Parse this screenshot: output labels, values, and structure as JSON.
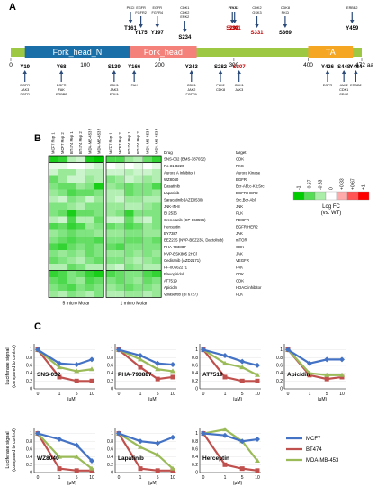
{
  "panels": {
    "a": "A",
    "b": "B",
    "c": "C"
  },
  "domain_map": {
    "domains": [
      {
        "name": "Fork_head_N",
        "start": 19,
        "end": 160,
        "color": "#1a6fa8"
      },
      {
        "name": "Fork_head",
        "start": 160,
        "end": 250,
        "color": "#f4827a"
      },
      {
        "name": "TA",
        "start": 400,
        "end": 460,
        "color": "#f5a623"
      }
    ],
    "backbone_color": "#9cc843",
    "tick_values": [
      "0",
      "100",
      "200",
      "300",
      "400",
      "472 aa"
    ],
    "top_sites": [
      {
        "site": "T161",
        "aa": 161,
        "kinases": [
          "PKCI"
        ],
        "color": "#000000"
      },
      {
        "site": "Y175",
        "aa": 175,
        "kinases": [
          "EGFR",
          "FGFR2"
        ],
        "color": "#000000"
      },
      {
        "site": "Y197",
        "aa": 197,
        "kinases": [
          "EGFR",
          "FGFR4"
        ],
        "color": "#000000"
      },
      {
        "site": "S234",
        "aa": 234,
        "kinases": [
          "CDK1",
          "CDK2",
          "ERK2"
        ],
        "color": "#000000"
      },
      {
        "site": "S298",
        "aa": 298,
        "kinases": [
          "PLK3"
        ],
        "color": "#c00000"
      },
      {
        "site": "S301",
        "aa": 301,
        "kinases": [
          "PLK2"
        ],
        "color": "#c00000"
      },
      {
        "site": "S331",
        "aa": 331,
        "kinases": [
          "CDK2",
          "GSK3"
        ],
        "color": "#c00000"
      },
      {
        "site": "S369",
        "aa": 369,
        "kinases": [
          "CDK8",
          "PKCi"
        ],
        "color": "#000000"
      },
      {
        "site": "Y459",
        "aa": 459,
        "kinases": [
          "ERBB2"
        ],
        "color": "#000000"
      }
    ],
    "bottom_sites": [
      {
        "site": "Y19",
        "aa": 19,
        "kinases": [
          "EGFR",
          "JAK3",
          "FGFR"
        ],
        "color": "#000000"
      },
      {
        "site": "Y68",
        "aa": 68,
        "kinases": [
          "EGFR",
          "FAK",
          "ERBB2"
        ],
        "color": "#000000"
      },
      {
        "site": "S139",
        "aa": 139,
        "kinases": [
          "CDK1",
          "JAK3",
          "ERK1"
        ],
        "color": "#000000"
      },
      {
        "site": "Y166",
        "aa": 166,
        "kinases": [
          "FAK"
        ],
        "color": "#000000"
      },
      {
        "site": "Y243",
        "aa": 243,
        "kinases": [
          "CDK1",
          "JAK2",
          "FGFR1"
        ],
        "color": "#000000"
      },
      {
        "site": "S282",
        "aa": 282,
        "kinases": [
          "PLK2",
          "CDK8"
        ],
        "color": "#000000"
      },
      {
        "site": "S307",
        "aa": 307,
        "kinases": [
          "CDK1",
          "JAK3"
        ],
        "color": "#c00000"
      },
      {
        "site": "Y426",
        "aa": 426,
        "kinases": [
          "EGFR"
        ],
        "color": "#000000"
      },
      {
        "site": "S448",
        "aa": 448,
        "kinases": [
          "JAK2",
          "CDK1",
          "CDK2"
        ],
        "color": "#000000"
      },
      {
        "site": "Y464",
        "aa": 464,
        "kinases": [
          "ERBB2"
        ],
        "color": "#000000"
      }
    ]
  },
  "heatmap": {
    "col_headers": [
      "MCF7 Rep 1",
      "MCF7 Rep 2",
      "BT474 Rep 1",
      "BT474 Rep 2",
      "MDA-MB-453 Rep 1",
      "MDA-MB-453 Rep 2"
    ],
    "header_drug": "Drug",
    "header_target": "target",
    "group_labels": [
      "5 micro Molar",
      "1 micro Molar"
    ],
    "drugs": [
      {
        "drug": "SNS-032 (BMS-387032)",
        "target": "CDK"
      },
      {
        "drug": "Ro 31-8220",
        "target": "PKC"
      },
      {
        "drug": "Aurora A Inhibitor I",
        "target": "Aurora Kinase"
      },
      {
        "drug": "WZ8040",
        "target": "EGFR"
      },
      {
        "drug": "Dasatinib",
        "target": "Bcr-Abl;c-Kit;Src"
      },
      {
        "drug": "Lapatinib",
        "target": "EGFR,HER2"
      },
      {
        "drug": "Saracatinib (AZD0530)",
        "target": "Src,Bcr-Abl"
      },
      {
        "drug": "JNK-IN-8",
        "target": "JNK"
      },
      {
        "drug": "BI 2536",
        "target": "PLK"
      },
      {
        "drug": "Crenolanib (CP-868596)",
        "target": "PDGFR"
      },
      {
        "drug": "Herceptin",
        "target": "EGFR,HER2"
      },
      {
        "drug": "EY7387",
        "target": "JAK"
      },
      {
        "drug": "BEZ235 (NVP-BEZ235, Dactolisib)",
        "target": "mTOR"
      },
      {
        "drug": "PHA-793887",
        "target": "CDK"
      },
      {
        "drug": "NVP-BSK805 2HCl",
        "target": "JAK"
      },
      {
        "drug": "Cediranib (AZD2171)",
        "target": "VEGFR"
      },
      {
        "drug": "PF-00562271",
        "target": "FAK"
      },
      {
        "drug": "Flavopiridol",
        "target": "CDK"
      },
      {
        "drug": "AT7519",
        "target": "CDK"
      },
      {
        "drug": "Apicidin",
        "target": "HDAC inhibitor"
      },
      {
        "drug": "Volasertib (BI 6727)",
        "target": "PLK"
      }
    ],
    "values_5uM": [
      [
        -0.9,
        -0.8,
        -0.3,
        -0.2,
        -0.9,
        -1.0
      ],
      [
        -0.1,
        -0.1,
        0.0,
        0.0,
        -0.1,
        -0.2
      ],
      [
        -0.2,
        -0.4,
        -0.4,
        -0.2,
        -0.3,
        -0.3
      ],
      [
        -0.6,
        -0.4,
        -0.2,
        -0.2,
        -0.4,
        -0.3
      ],
      [
        -0.5,
        -0.6,
        -0.6,
        -0.4,
        -0.5,
        -0.9
      ],
      [
        -0.4,
        -0.5,
        -0.7,
        -0.6,
        -0.6,
        -0.5
      ],
      [
        -0.3,
        -0.2,
        -0.5,
        -0.4,
        -0.2,
        -0.4
      ],
      [
        -0.5,
        -0.5,
        -0.4,
        -0.3,
        -0.5,
        -0.5
      ],
      [
        -0.5,
        -0.6,
        -0.9,
        -0.6,
        -0.6,
        -0.5
      ],
      [
        -0.3,
        -0.2,
        -0.7,
        -0.3,
        -0.3,
        -0.6
      ],
      [
        -0.7,
        -0.6,
        -0.8,
        -0.7,
        -0.4,
        -0.5
      ],
      [
        -0.4,
        -0.5,
        -0.6,
        -0.5,
        -0.5,
        -0.4
      ],
      [
        -0.5,
        -0.6,
        -0.7,
        -0.6,
        -0.6,
        -0.7
      ],
      [
        -0.7,
        -0.8,
        -0.6,
        -0.5,
        -0.6,
        -0.5
      ],
      [
        -0.5,
        -0.4,
        -0.5,
        -0.4,
        -0.6,
        -0.5
      ],
      [
        -0.6,
        -0.5,
        -0.4,
        -0.3,
        -0.5,
        -0.6
      ],
      [
        -0.3,
        -0.3,
        -0.6,
        -0.5,
        -0.3,
        -0.3
      ],
      [
        -0.8,
        -0.7,
        -0.5,
        -0.6,
        -0.8,
        -0.9
      ],
      [
        -0.6,
        -0.7,
        -0.5,
        -0.4,
        -0.7,
        -0.6
      ],
      [
        -0.5,
        -0.6,
        -0.7,
        -0.5,
        -0.6,
        -0.5
      ],
      [
        -0.4,
        -0.3,
        -0.5,
        -0.4,
        -0.3,
        -0.5
      ]
    ],
    "values_1uM": [
      [
        -0.7,
        -0.7,
        -0.4,
        -0.3,
        -0.6,
        -0.8
      ],
      [
        0.0,
        -0.1,
        0.0,
        -0.1,
        0.0,
        -0.1
      ],
      [
        -0.2,
        -0.2,
        -0.3,
        -0.2,
        -0.2,
        -0.3
      ],
      [
        -0.5,
        -0.4,
        -0.2,
        -0.3,
        -0.4,
        -0.3
      ],
      [
        -0.4,
        -0.5,
        -0.6,
        -0.5,
        -0.5,
        -0.7
      ],
      [
        -0.3,
        -0.3,
        -0.6,
        -0.5,
        -0.5,
        -0.4
      ],
      [
        -0.3,
        -0.2,
        -0.4,
        -0.4,
        -0.3,
        -0.3
      ],
      [
        -0.4,
        -0.4,
        -0.3,
        -0.3,
        -0.4,
        -0.5
      ],
      [
        -0.4,
        -0.5,
        -0.8,
        -0.5,
        -0.5,
        -0.5
      ],
      [
        -0.2,
        -0.2,
        -0.6,
        -0.3,
        -0.2,
        -0.5
      ],
      [
        -0.6,
        -0.5,
        -0.7,
        -0.6,
        -0.4,
        -0.5
      ],
      [
        -0.4,
        -0.4,
        -0.5,
        -0.5,
        -0.4,
        -0.4
      ],
      [
        -0.5,
        -0.5,
        -0.6,
        -0.6,
        -0.5,
        -0.6
      ],
      [
        -0.6,
        -0.7,
        -0.5,
        -0.5,
        -0.5,
        -0.5
      ],
      [
        -0.4,
        -0.4,
        -0.5,
        -0.4,
        -0.5,
        -0.4
      ],
      [
        -0.5,
        -0.5,
        -0.4,
        -0.3,
        -0.4,
        -0.5
      ],
      [
        -0.3,
        -0.2,
        -0.5,
        -0.4,
        -0.3,
        -0.3
      ],
      [
        -0.7,
        -0.6,
        -0.5,
        -0.5,
        -0.7,
        -0.8
      ],
      [
        -0.5,
        -0.6,
        -0.5,
        -0.4,
        -0.6,
        -0.5
      ],
      [
        -0.4,
        -0.5,
        -0.6,
        -0.5,
        -0.5,
        -0.4
      ],
      [
        -0.3,
        -0.3,
        -0.4,
        -0.4,
        -0.3,
        -0.4
      ]
    ],
    "legend": {
      "ticks": [
        "-1",
        "-0.67",
        "-0.33",
        "0",
        "+0.33",
        "+0.67",
        "+1"
      ],
      "title_line1": "Log FC",
      "title_line2": "(vs. WT)"
    }
  },
  "dose_response": {
    "ylabel": "Luciferase signal\n(compared to control)",
    "xlabel": "(μM)",
    "x_ticks": [
      "0",
      "1",
      "5",
      "10"
    ],
    "y_ticks": [
      "0",
      "0.2",
      "0.4",
      "0.6",
      "0.8",
      "1"
    ],
    "series_colors": {
      "MCF7": "#4472c4",
      "BT474": "#c0504d",
      "MDA-MB-453": "#9bbb59"
    },
    "legend": [
      "MCF7",
      "BT474",
      "MDA-MB-453"
    ],
    "panels": [
      {
        "name": "SNS-032",
        "MCF7": [
          1.0,
          0.65,
          0.62,
          0.75
        ],
        "BT474": [
          1.0,
          0.3,
          0.2,
          0.2
        ],
        "MDA-MB-453": [
          1.0,
          0.55,
          0.45,
          0.5
        ]
      },
      {
        "name": "PHA-793887",
        "MCF7": [
          1.0,
          0.85,
          0.65,
          0.62
        ],
        "BT474": [
          1.0,
          0.55,
          0.25,
          0.3
        ],
        "MDA-MB-453": [
          1.0,
          0.75,
          0.5,
          0.45
        ]
      },
      {
        "name": "AT7519",
        "MCF7": [
          1.0,
          0.85,
          0.7,
          0.6
        ],
        "BT474": [
          1.0,
          0.3,
          0.2,
          0.2
        ],
        "MDA-MB-453": [
          1.0,
          0.65,
          0.55,
          0.35
        ]
      },
      {
        "name": "Apicidin",
        "MCF7": [
          1.0,
          0.65,
          0.75,
          0.75
        ],
        "BT474": [
          1.0,
          0.35,
          0.25,
          0.3
        ],
        "MDA-MB-453": [
          1.0,
          0.4,
          0.35,
          0.35
        ]
      },
      {
        "name": "WZ8040",
        "MCF7": [
          1.0,
          0.85,
          0.7,
          0.3
        ],
        "BT474": [
          1.0,
          0.1,
          0.05,
          0.05
        ],
        "MDA-MB-453": [
          1.0,
          0.4,
          0.4,
          0.1
        ]
      },
      {
        "name": "Lapatinib",
        "MCF7": [
          1.0,
          0.8,
          0.75,
          0.9
        ],
        "BT474": [
          1.0,
          0.1,
          0.05,
          0.05
        ],
        "MDA-MB-453": [
          1.0,
          0.65,
          0.45,
          0.1
        ]
      },
      {
        "name": "Herceptin",
        "MCF7": [
          1.0,
          0.95,
          0.8,
          0.85
        ],
        "BT474": [
          1.0,
          0.2,
          0.1,
          0.05
        ],
        "MDA-MB-453": [
          1.0,
          1.1,
          0.8,
          0.3
        ]
      }
    ]
  }
}
